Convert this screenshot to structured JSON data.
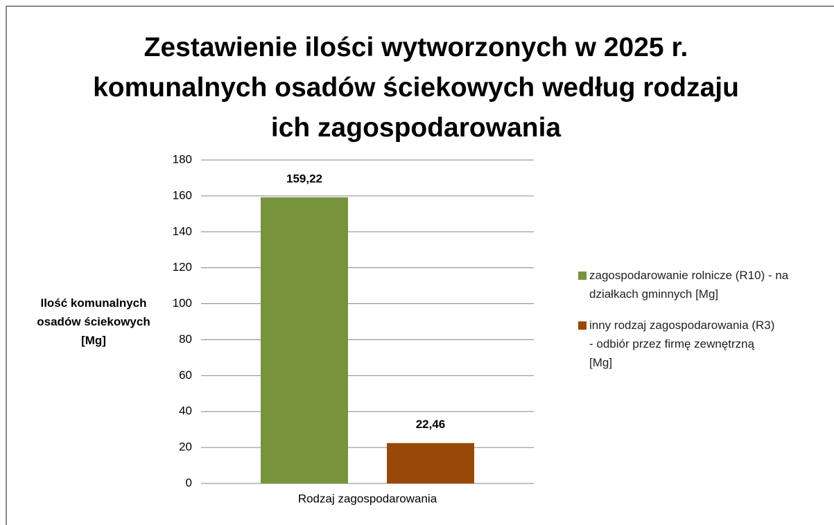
{
  "chart_data": {
    "type": "bar",
    "title": "Zestawienie ilości wytworzonych w 2025 r. komunalnych osadów ściekowych według rodzaju ich zagospodarowania",
    "categories": [
      "Rodzaj zagospodarowania"
    ],
    "series": [
      {
        "name": "zagospodarowanie rolnicze (R10) - na działkach gminnych  [Mg]",
        "color": "#77933c",
        "values": [
          159.22
        ],
        "value_labels": [
          "159,22"
        ]
      },
      {
        "name": " inny rodzaj zagospodarowania (R3) - odbiór przez firmę zewnętrzną  [Mg]",
        "color": "#984807",
        "values": [
          22.46
        ],
        "value_labels": [
          "22,46"
        ]
      }
    ],
    "y_label": "Ilość komunalnych osadów ściekowych [Mg]",
    "ylim": [
      0,
      180
    ],
    "yticks": [
      0,
      20,
      40,
      60,
      80,
      100,
      120,
      140,
      160,
      180
    ],
    "grid": true,
    "legend": "right"
  }
}
